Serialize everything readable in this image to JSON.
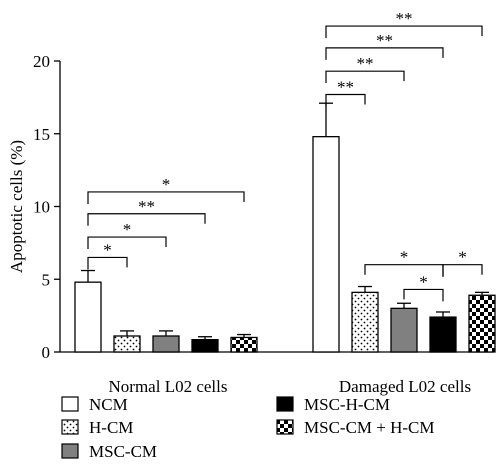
{
  "chart_data": {
    "type": "bar",
    "title": "",
    "ylabel": "Apoptotic cells (%)",
    "xlabel": "",
    "ylim": [
      0,
      20
    ],
    "yticks": [
      0,
      5,
      10,
      15,
      20
    ],
    "grid": false,
    "legend_position": "bottom",
    "groups": [
      "Normal L02 cells",
      "Damaged L02 cells"
    ],
    "series": [
      {
        "name": "NCM",
        "pattern": "white",
        "values": [
          4.8,
          14.8
        ],
        "errors": [
          0.8,
          2.3
        ]
      },
      {
        "name": "H-CM",
        "pattern": "dots",
        "values": [
          1.1,
          4.1
        ],
        "errors": [
          0.35,
          0.4
        ]
      },
      {
        "name": "MSC-CM",
        "pattern": "gray",
        "values": [
          1.1,
          3.0
        ],
        "errors": [
          0.35,
          0.35
        ]
      },
      {
        "name": "MSC-H-CM",
        "pattern": "black",
        "values": [
          0.85,
          2.4
        ],
        "errors": [
          0.2,
          0.35
        ]
      },
      {
        "name": "MSC-CM + H-CM",
        "pattern": "checker",
        "values": [
          1.0,
          3.9
        ],
        "errors": [
          0.2,
          0.2
        ]
      }
    ],
    "significance": [
      {
        "group": 0,
        "from": 0,
        "to": 1,
        "y": 6.5,
        "label": "*"
      },
      {
        "group": 0,
        "from": 0,
        "to": 2,
        "y": 7.9,
        "label": "*"
      },
      {
        "group": 0,
        "from": 0,
        "to": 3,
        "y": 9.5,
        "label": "**"
      },
      {
        "group": 0,
        "from": 0,
        "to": 4,
        "y": 11.0,
        "label": "*"
      },
      {
        "group": 1,
        "from": 0,
        "to": 1,
        "y": 17.7,
        "label": "**"
      },
      {
        "group": 1,
        "from": 0,
        "to": 2,
        "y": 19.3,
        "label": "**"
      },
      {
        "group": 1,
        "from": 0,
        "to": 3,
        "y": 20.9,
        "label": "**"
      },
      {
        "group": 1,
        "from": 0,
        "to": 4,
        "y": 22.4,
        "label": "**"
      },
      {
        "group": 1,
        "from": 3,
        "to": 2,
        "y": 4.3,
        "label": "*"
      },
      {
        "group": 1,
        "from": 3,
        "to": 1,
        "y": 6.0,
        "label": "*"
      },
      {
        "group": 1,
        "from": 3,
        "to": 4,
        "y": 6.0,
        "label": "*"
      }
    ]
  }
}
